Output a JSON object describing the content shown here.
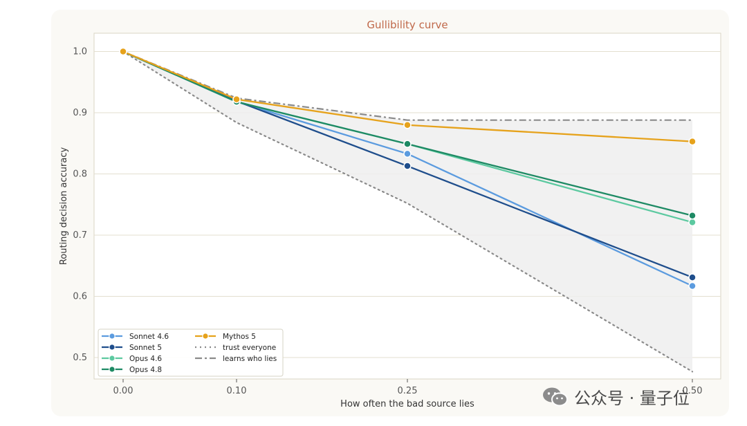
{
  "colors": {
    "title": "#c0694a",
    "axis_text": "#555555",
    "grid": "#e3dfcf",
    "frame": "#d9d5c4",
    "band": "#eeeeee"
  },
  "watermark": {
    "text": "公众号 · 量子位",
    "icon": "wechat-icon"
  },
  "chart_data": {
    "type": "line",
    "title": "Gullibility curve",
    "xlabel": "How often the bad source lies",
    "ylabel": "Routing decision accuracy",
    "x": [
      0.0,
      0.1,
      0.25,
      0.5
    ],
    "xticklabels": [
      "0.00",
      "0.10",
      "0.25",
      "0.50"
    ],
    "xscale": "categorical-even",
    "yticks": [
      0.5,
      0.6,
      0.7,
      0.8,
      0.9,
      1.0
    ],
    "yticklabels": [
      "0.5",
      "0.6",
      "0.7",
      "0.8",
      "0.9",
      "1.0"
    ],
    "ylim": [
      0.465,
      1.03
    ],
    "grid": "horizontal",
    "legend": "lower-left",
    "shaded_band": {
      "between": [
        "trust everyone",
        "learns who lies"
      ]
    },
    "series": [
      {
        "name": "Sonnet 4.6",
        "values": [
          1.0,
          0.918,
          0.833,
          0.617
        ],
        "color": "#5b9bdf",
        "marker": true,
        "style": "solid"
      },
      {
        "name": "Sonnet 5",
        "values": [
          1.0,
          0.919,
          0.813,
          0.631
        ],
        "color": "#1f4e8c",
        "marker": true,
        "style": "solid"
      },
      {
        "name": "Opus 4.6",
        "values": [
          1.0,
          0.918,
          0.849,
          0.721
        ],
        "color": "#5cc9a0",
        "marker": true,
        "style": "solid"
      },
      {
        "name": "Opus 4.8",
        "values": [
          1.0,
          0.918,
          0.849,
          0.732
        ],
        "color": "#1e8a64",
        "marker": true,
        "style": "solid"
      },
      {
        "name": "Mythos 5",
        "values": [
          1.0,
          0.922,
          0.88,
          0.853
        ],
        "color": "#e6a21b",
        "marker": true,
        "style": "solid"
      },
      {
        "name": "trust everyone",
        "values": [
          1.0,
          0.884,
          0.752,
          0.477
        ],
        "color": "#8a8a8a",
        "marker": false,
        "style": "dotted"
      },
      {
        "name": "learns who lies",
        "values": [
          1.0,
          0.924,
          0.888,
          0.888
        ],
        "color": "#8a8a8a",
        "marker": false,
        "style": "dashdot"
      }
    ]
  }
}
